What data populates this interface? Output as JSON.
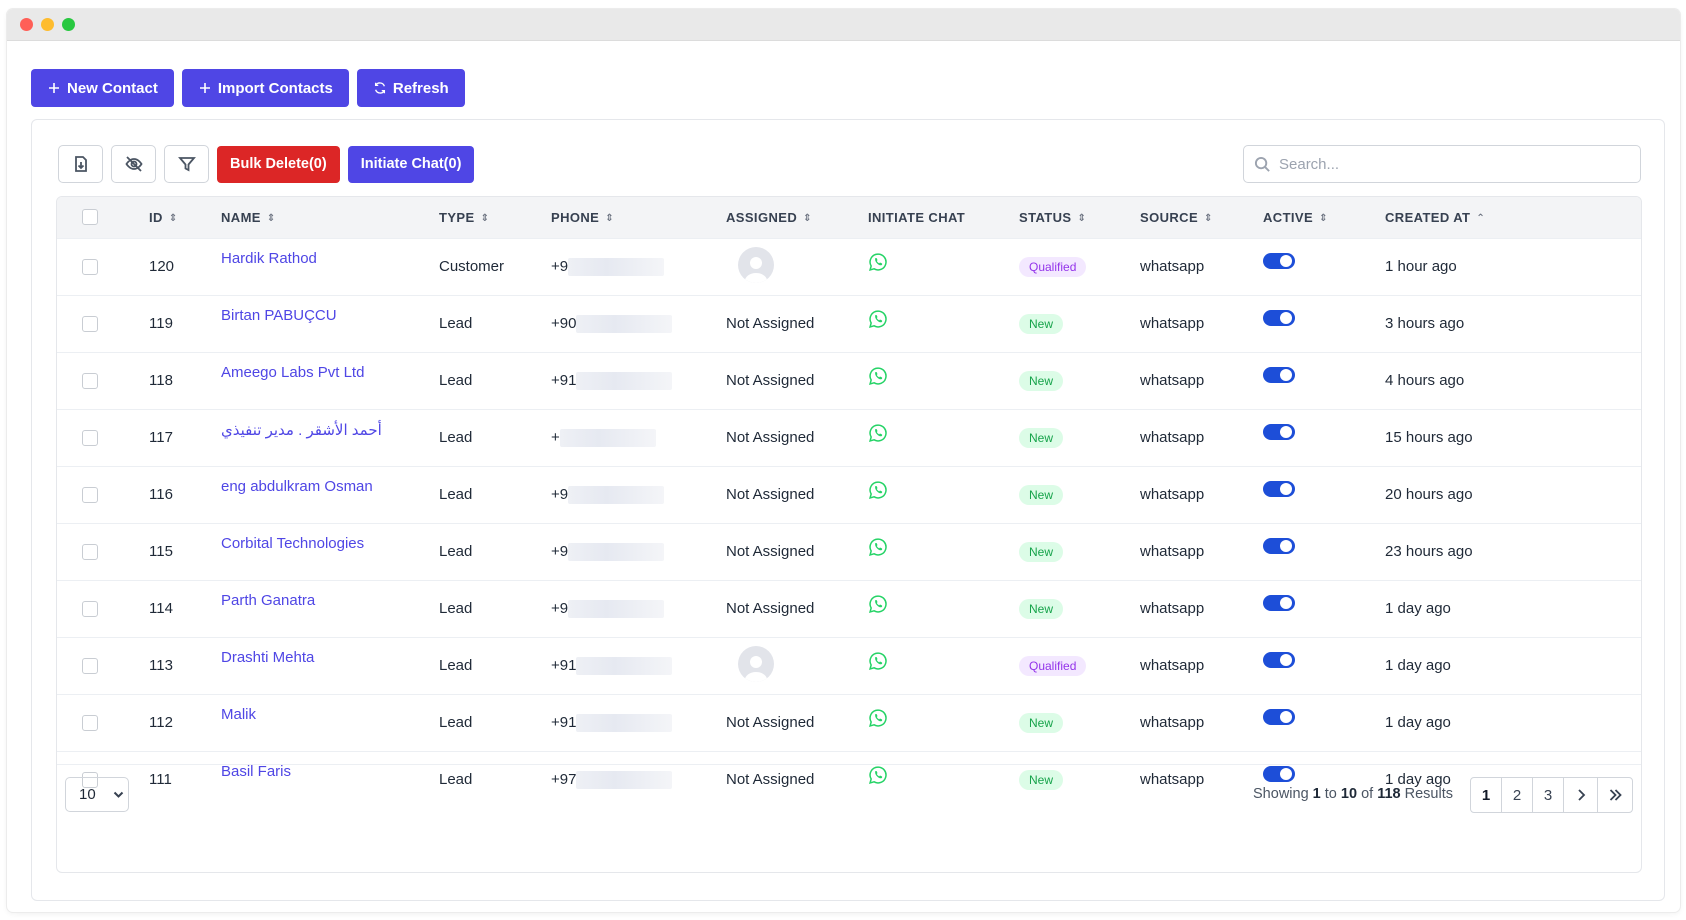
{
  "actions": {
    "new_contact": "New Contact",
    "import_contacts": "Import Contacts",
    "refresh": "Refresh"
  },
  "toolbar": {
    "bulk_delete": "Bulk Delete(0)",
    "initiate_chat": "Initiate Chat(0)",
    "search_placeholder": "Search..."
  },
  "columns": [
    "ID",
    "NAME",
    "TYPE",
    "PHONE",
    "ASSIGNED",
    "INITIATE CHAT",
    "STATUS",
    "SOURCE",
    "ACTIVE",
    "CREATED AT"
  ],
  "rows": [
    {
      "id": "120",
      "name": "Hardik Rathod",
      "type": "Customer",
      "phone": "+9",
      "assigned": "",
      "assigned_avatar": true,
      "status": "Qualified",
      "source": "whatsapp",
      "active": true,
      "created": "1 hour ago"
    },
    {
      "id": "119",
      "name": "Birtan PABUÇCU",
      "type": "Lead",
      "phone": "+90",
      "assigned": "Not Assigned",
      "assigned_avatar": false,
      "status": "New",
      "source": "whatsapp",
      "active": true,
      "created": "3 hours ago"
    },
    {
      "id": "118",
      "name": "Ameego Labs Pvt Ltd",
      "type": "Lead",
      "phone": "+91",
      "assigned": "Not Assigned",
      "assigned_avatar": false,
      "status": "New",
      "source": "whatsapp",
      "active": true,
      "created": "4 hours ago"
    },
    {
      "id": "117",
      "name": "أحمد الأشقر . مدير تنفيذي",
      "type": "Lead",
      "phone": "+",
      "assigned": "Not Assigned",
      "assigned_avatar": false,
      "status": "New",
      "source": "whatsapp",
      "active": true,
      "created": "15 hours ago"
    },
    {
      "id": "116",
      "name": "eng abdulkram Osman",
      "type": "Lead",
      "phone": "+9",
      "assigned": "Not Assigned",
      "assigned_avatar": false,
      "status": "New",
      "source": "whatsapp",
      "active": true,
      "created": "20 hours ago"
    },
    {
      "id": "115",
      "name": "Corbital Technologies",
      "type": "Lead",
      "phone": "+9",
      "assigned": "Not Assigned",
      "assigned_avatar": false,
      "status": "New",
      "source": "whatsapp",
      "active": true,
      "created": "23 hours ago"
    },
    {
      "id": "114",
      "name": "Parth Ganatra",
      "type": "Lead",
      "phone": "+9",
      "assigned": "Not Assigned",
      "assigned_avatar": false,
      "status": "New",
      "source": "whatsapp",
      "active": true,
      "created": "1 day ago"
    },
    {
      "id": "113",
      "name": "Drashti Mehta",
      "type": "Lead",
      "phone": "+91",
      "assigned": "",
      "assigned_avatar": true,
      "status": "Qualified",
      "source": "whatsapp",
      "active": true,
      "created": "1 day ago"
    },
    {
      "id": "112",
      "name": "Malik",
      "type": "Lead",
      "phone": "+91",
      "assigned": "Not Assigned",
      "assigned_avatar": false,
      "status": "New",
      "source": "whatsapp",
      "active": true,
      "created": "1 day ago"
    },
    {
      "id": "111",
      "name": "Basil Faris",
      "type": "Lead",
      "phone": "+97",
      "assigned": "Not Assigned",
      "assigned_avatar": false,
      "status": "New",
      "source": "whatsapp",
      "active": true,
      "created": "1 day ago"
    }
  ],
  "pagination": {
    "page_size": "10",
    "showing_prefix": "Showing",
    "from": "1",
    "to_word": "to",
    "to": "10",
    "of_word": "of",
    "total": "118",
    "results_word": "Results",
    "pages": [
      "1",
      "2",
      "3"
    ],
    "current": "1"
  },
  "colors": {
    "primary": "#4f46e5",
    "danger": "#dc2626",
    "whatsapp": "#25d366",
    "toggle": "#1d4ed8"
  }
}
